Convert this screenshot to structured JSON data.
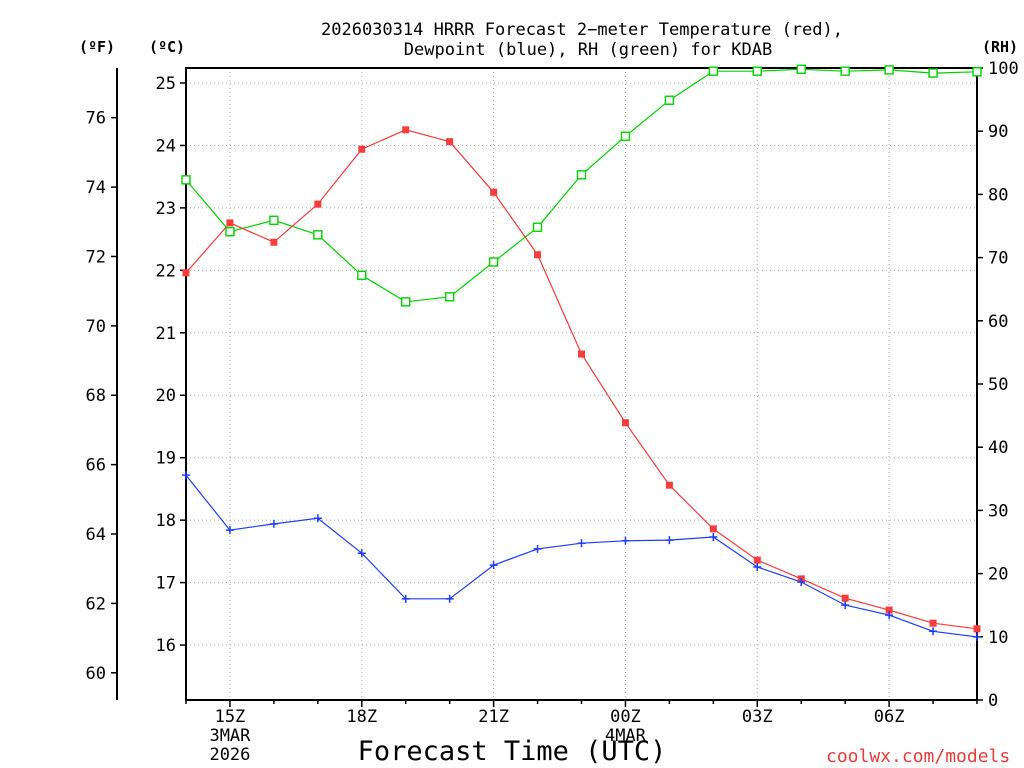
{
  "chart_data": {
    "type": "line",
    "title": [
      "2026030314 HRRR Forecast 2−meter Temperature (red),",
      "Dewpoint (blue), RH (green) for KDAB"
    ],
    "xlabel": "Forecast Time (UTC)",
    "ylabel_f": "(ºF)",
    "ylabel_c": "(ºC)",
    "ylabel_rh": "(RH)",
    "credit": "coolwx.com/models",
    "credit_color": "#ea3c3c",
    "grid": true,
    "x": [
      0,
      1,
      2,
      3,
      4,
      5,
      6,
      7,
      8,
      9,
      10,
      11,
      12,
      13,
      14,
      15,
      16,
      17,
      18
    ],
    "xlim": [
      0,
      18
    ],
    "x_ticks": [
      {
        "x": 1,
        "label": "15Z",
        "lines": [
          "3MAR",
          "2026"
        ]
      },
      {
        "x": 4,
        "label": "18Z",
        "lines": []
      },
      {
        "x": 7,
        "label": "21Z",
        "lines": []
      },
      {
        "x": 10,
        "label": "00Z",
        "lines": [
          "4MAR"
        ]
      },
      {
        "x": 13,
        "label": "03Z",
        "lines": []
      },
      {
        "x": 16,
        "label": "06Z",
        "lines": []
      }
    ],
    "ylim_c": [
      15.12,
      25.24
    ],
    "yticks_c": [
      16,
      17,
      18,
      19,
      20,
      21,
      22,
      23,
      24,
      25
    ],
    "yticks_f": [
      60,
      62,
      64,
      66,
      68,
      70,
      72,
      74,
      76
    ],
    "ylim_rh": [
      0,
      100
    ],
    "yticks_rh": [
      0,
      10,
      20,
      30,
      40,
      50,
      60,
      70,
      80,
      90,
      100
    ],
    "series": {
      "temperature_c": {
        "color": "#fa3c3c",
        "values": [
          21.96,
          22.76,
          22.45,
          23.06,
          23.94,
          24.25,
          24.06,
          23.25,
          22.25,
          20.66,
          19.56,
          18.56,
          17.86,
          17.36,
          17.06,
          16.75,
          16.56,
          16.35,
          16.26
        ]
      },
      "dewpoint_c": {
        "color": "#1e3cff",
        "values": [
          18.72,
          17.84,
          17.94,
          18.03,
          17.47,
          16.74,
          16.74,
          17.28,
          17.54,
          17.63,
          17.67,
          17.68,
          17.73,
          17.25,
          17.01,
          16.64,
          16.48,
          16.22,
          16.13
        ]
      },
      "rh_percent": {
        "color": "#00d200",
        "values": [
          82.3,
          74.1,
          75.9,
          73.6,
          67.2,
          63.0,
          63.8,
          69.3,
          74.8,
          83.1,
          89.2,
          94.9,
          99.5,
          99.5,
          99.8,
          99.5,
          99.7,
          99.2,
          99.4
        ]
      }
    }
  }
}
